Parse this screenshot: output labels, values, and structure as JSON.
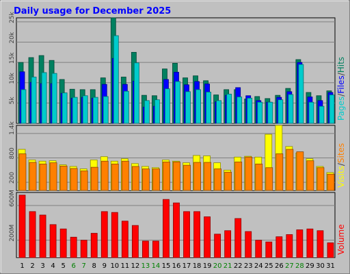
{
  "chart_data": {
    "type": "bar",
    "title": "Daily usage for December 2025",
    "categories": [
      "1",
      "2",
      "3",
      "4",
      "5",
      "6",
      "7",
      "8",
      "9",
      "10",
      "11",
      "12",
      "13",
      "14",
      "15",
      "16",
      "17",
      "18",
      "19",
      "20",
      "21",
      "22",
      "23",
      "24",
      "25",
      "26",
      "27",
      "28",
      "29",
      "30",
      "31"
    ],
    "weekend_days": [
      "6",
      "7",
      "13",
      "14",
      "20",
      "21",
      "27",
      "28"
    ],
    "panels": [
      {
        "id": "hits",
        "side_labels": [
          "Pages",
          "/",
          "Files",
          "/",
          "Hits"
        ],
        "side_colors": [
          "#00cccc",
          "#404040",
          "#0000ff",
          "#404040",
          "#008060"
        ],
        "ylim": [
          0,
          26000
        ],
        "yticks": [
          5000,
          10000,
          15000,
          20000,
          25000
        ],
        "ytick_labels": [
          "5k",
          "10k",
          "15k",
          "20k",
          "25k"
        ],
        "series": [
          {
            "name": "Hits",
            "color": "#008060",
            "values": [
              15000,
              16200,
              16700,
              15500,
              10800,
              8400,
              8300,
              8300,
              11200,
              26200,
              11400,
              17500,
              6900,
              6800,
              13400,
              14800,
              11200,
              11700,
              10500,
              7000,
              8300,
              8300,
              6000,
              6600,
              6100,
              6900,
              8600,
              15700,
              7600,
              6800,
              8000
            ]
          },
          {
            "name": "Files",
            "color": "#0000ff",
            "values": [
              12700,
              10100,
              9800,
              9800,
              7400,
              6200,
              6400,
              6200,
              9600,
              16000,
              9600,
              10400,
              4000,
              4200,
              10800,
              12600,
              9500,
              10300,
              9700,
              5300,
              6900,
              8800,
              6800,
              5600,
              5200,
              6400,
              7800,
              15000,
              6500,
              5600,
              7600
            ]
          },
          {
            "name": "Pages",
            "color": "#00cccc",
            "values": [
              8300,
              11400,
              12500,
              12300,
              7500,
              6400,
              6800,
              6400,
              6600,
              21600,
              7900,
              14900,
              5600,
              5800,
              8500,
              10300,
              7800,
              8300,
              7700,
              5600,
              7200,
              6500,
              6200,
              5200,
              5200,
              5800,
              7100,
              14500,
              5200,
              4200,
              7000
            ]
          }
        ]
      },
      {
        "id": "visits",
        "side_labels": [
          "Visits",
          "/",
          "Sites"
        ],
        "side_colors": [
          "#ffff00",
          "#404040",
          "#ff8000"
        ],
        "ylim": [
          0,
          1600
        ],
        "yticks": [
          200,
          800,
          1400
        ],
        "ytick_labels": [
          "200",
          "800",
          "1.4k"
        ],
        "series": [
          {
            "name": "Visits",
            "color": "#ffff00",
            "values": [
              1010,
              750,
              720,
              730,
              630,
              590,
              530,
              750,
              830,
              720,
              780,
              660,
              590,
              560,
              750,
              720,
              680,
              860,
              850,
              680,
              500,
              820,
              840,
              820,
              1380,
              1770,
              1080,
              920,
              780,
              590,
              440
            ]
          },
          {
            "name": "Sites",
            "color": "#ff8000",
            "values": [
              900,
              690,
              650,
              680,
              600,
              540,
              480,
              570,
              720,
              650,
              720,
              590,
              530,
              530,
              700,
              700,
              620,
              690,
              690,
              530,
              450,
              700,
              820,
              650,
              560,
              900,
              1010,
              950,
              730,
              560,
              400
            ]
          }
        ]
      },
      {
        "id": "volume",
        "side_labels": [
          "Volume"
        ],
        "side_colors": [
          "#ff0000"
        ],
        "ylim": [
          0,
          750
        ],
        "yticks": [
          200,
          600
        ],
        "ytick_labels": [
          "200M",
          "600M"
        ],
        "series": [
          {
            "name": "Volume",
            "color": "#ff0000",
            "values": [
              720,
              530,
              490,
              380,
              330,
              235,
              200,
              280,
              530,
              520,
              420,
              370,
              190,
              190,
              670,
              630,
              530,
              530,
              470,
              270,
              310,
              450,
              300,
              200,
              180,
              240,
              265,
              320,
              330,
              310,
              170
            ]
          }
        ]
      }
    ]
  }
}
